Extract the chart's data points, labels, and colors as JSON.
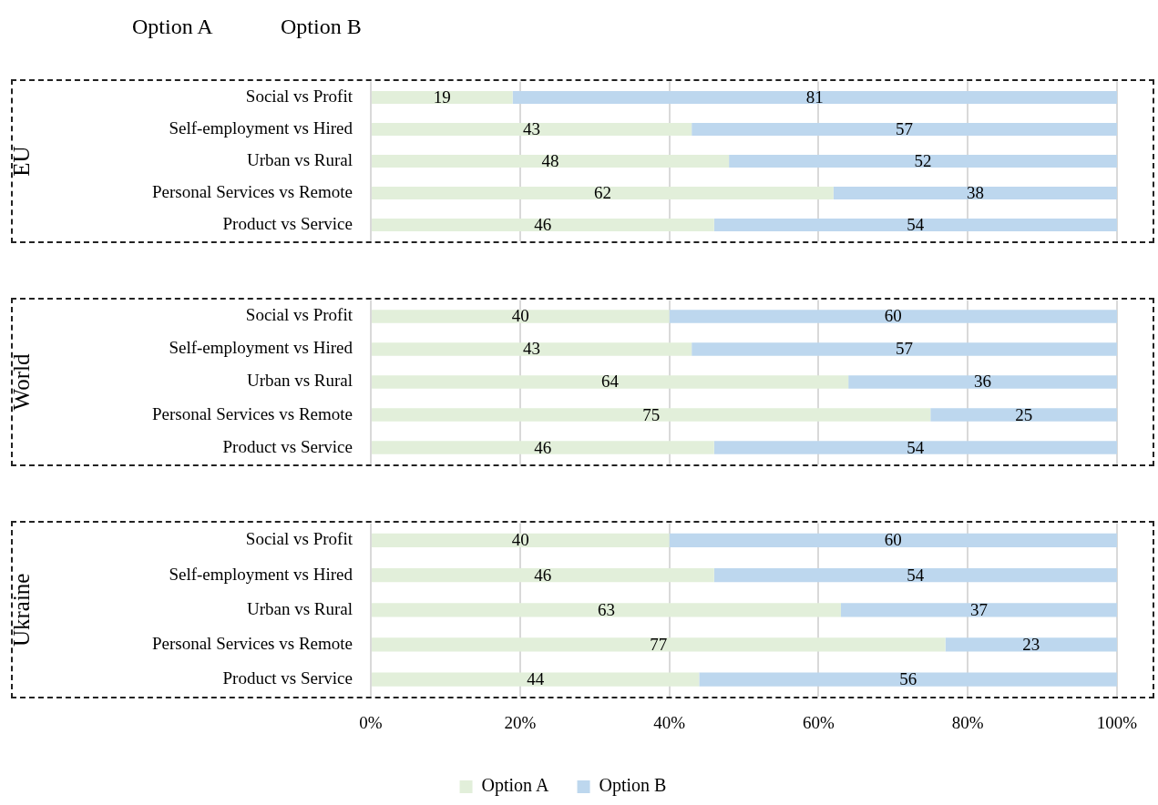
{
  "chart_data": [
    {
      "type": "bar",
      "orientation": "horizontal",
      "stacked": true,
      "ylabel": "EU",
      "annotations": [
        "Option A",
        "Option B"
      ],
      "categories": [
        "Social vs Profit",
        "Self-employment vs Hired",
        "Urban vs Rural",
        "Personal Services vs Remote",
        "Product vs Service"
      ],
      "series": [
        {
          "color": "#e2efda",
          "values": [
            19,
            43,
            48,
            62,
            46
          ]
        },
        {
          "color": "#bdd7ee",
          "values": [
            81,
            57,
            52,
            38,
            54
          ]
        }
      ],
      "xlim": [
        0,
        100
      ],
      "xticks": [
        0,
        20,
        40,
        60,
        80,
        100
      ],
      "tick_labels": "y",
      "grid": "x",
      "data_labels": true,
      "legend": false
    },
    {
      "type": "bar",
      "orientation": "horizontal",
      "stacked": true,
      "ylabel": "World",
      "categories": [
        "Social vs Profit",
        "Self-employment vs Hired",
        "Urban vs Rural",
        "Personal Services vs Remote",
        "Product vs Service"
      ],
      "series": [
        {
          "color": "#e2efda",
          "values": [
            40,
            43,
            64,
            75,
            46
          ]
        },
        {
          "color": "#bdd7ee",
          "values": [
            60,
            57,
            36,
            25,
            54
          ]
        }
      ],
      "xlim": [
        0,
        100
      ],
      "xticks": [
        0,
        20,
        40,
        60,
        80,
        100
      ],
      "tick_labels": "y",
      "grid": "x",
      "data_labels": true,
      "legend": false
    },
    {
      "type": "bar",
      "orientation": "horizontal",
      "stacked": true,
      "ylabel": "Ukraine",
      "categories": [
        "Social vs Profit",
        "Self-employment vs Hired",
        "Urban vs Rural",
        "Personal Services vs Remote",
        "Product vs Service"
      ],
      "series": [
        {
          "name": "Option A",
          "color": "#e2efda",
          "values": [
            40,
            46,
            63,
            77,
            44
          ]
        },
        {
          "name": "Option B",
          "color": "#bdd7ee",
          "values": [
            60,
            54,
            37,
            23,
            56
          ]
        }
      ],
      "xlim": [
        0,
        100
      ],
      "xticks": [
        {
          "value": 0,
          "label": "0%"
        },
        {
          "value": 20,
          "label": "20%"
        },
        {
          "value": 40,
          "label": "40%"
        },
        {
          "value": 60,
          "label": "60%"
        },
        {
          "value": 80,
          "label": "80%"
        },
        {
          "value": 100,
          "label": "100%"
        }
      ],
      "grid": "x",
      "data_labels": true,
      "legend": "bottom"
    }
  ]
}
